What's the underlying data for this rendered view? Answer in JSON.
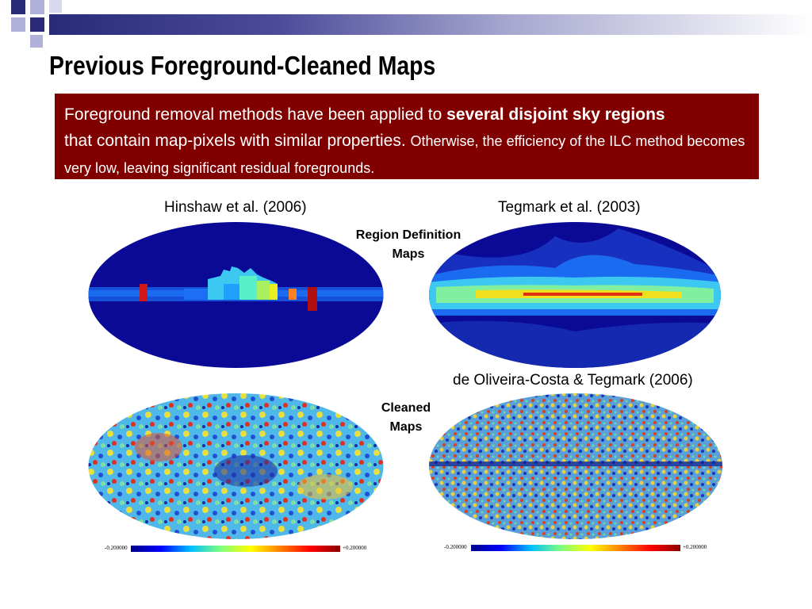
{
  "title": "Previous Foreground-Cleaned Maps",
  "callout": {
    "text_a": "Foreground removal methods have been applied to ",
    "text_bold": "several disjoint sky regions",
    "text_b": "that contain map-pixels with similar properties. ",
    "text_c": "Otherwise, the efficiency of the ILC method becomes very low, leaving significant residual foregrounds."
  },
  "labels": {
    "hinshaw": "Hinshaw et al. (2006)",
    "tegmark": "Tegmark et al. (2003)",
    "deoliveira": "de Oliveira-Costa & Tegmark (2006)",
    "region_def_1": "Region Definition",
    "region_def_2": "Maps",
    "cleaned_1": "Cleaned",
    "cleaned_2": "Maps"
  },
  "scales": {
    "left_min": "-0.200000",
    "left_max": "+0.200000",
    "right_min": "-0.200000",
    "right_max": "+0.200000"
  },
  "colors": {
    "callout_bg": "#800000",
    "map_background": "#00008b"
  }
}
